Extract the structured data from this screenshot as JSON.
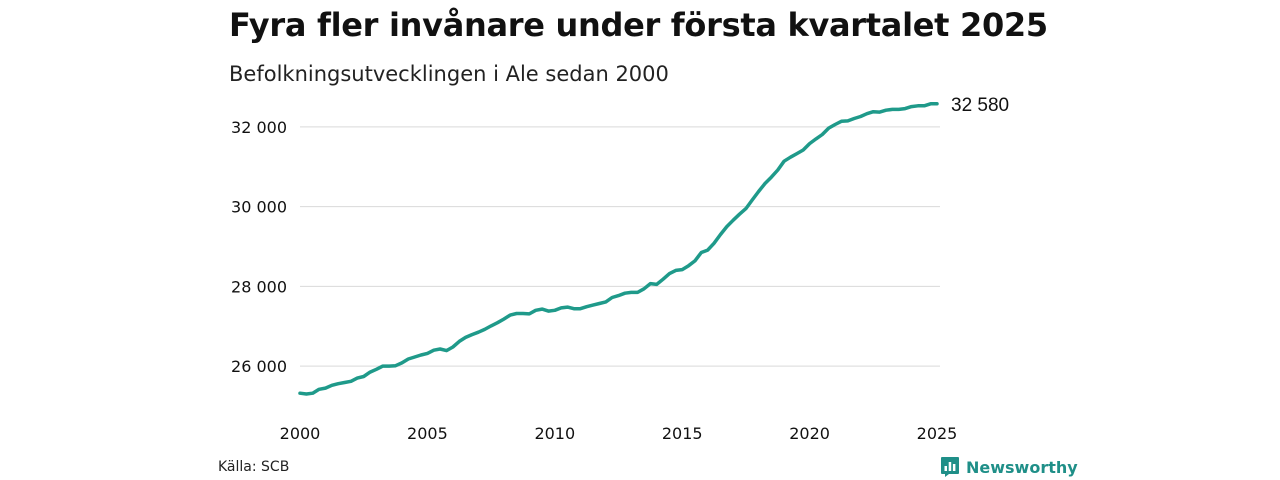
{
  "title": "Fyra fler invånare under första kvartalet 2025",
  "subtitle": "Befolkningsutvecklingen i Ale sedan 2000",
  "source": "Källa: SCB",
  "brand": {
    "name": "Newsworthy",
    "icon": "bar-chart-logo-icon",
    "color": "#1f8f88"
  },
  "colors": {
    "line": "#1f9a8a",
    "grid": "#d9d9d9",
    "text": "#111111"
  },
  "chart_data": {
    "type": "line",
    "title": "Fyra fler invånare under första kvartalet 2025",
    "subtitle": "Befolkningsutvecklingen i Ale sedan 2000",
    "xlabel": "",
    "ylabel": "",
    "xlim": [
      2000,
      2025
    ],
    "ylim": [
      25000,
      32800
    ],
    "x_ticks": [
      2000,
      2005,
      2010,
      2015,
      2020,
      2025
    ],
    "x_tick_labels": [
      "2000",
      "2005",
      "2010",
      "2015",
      "2020",
      "2025"
    ],
    "y_ticks": [
      26000,
      28000,
      30000,
      32000
    ],
    "y_tick_labels": [
      "26 000",
      "28 000",
      "30 000",
      "32 000"
    ],
    "grid": "horizontal",
    "end_label": "32 580",
    "series": [
      {
        "x": [
          2000.0,
          2000.25,
          2000.5,
          2000.75,
          2001.0,
          2001.25,
          2001.5,
          2001.75,
          2002.0,
          2002.25,
          2002.5,
          2002.75,
          2003.0,
          2003.25,
          2003.5,
          2003.75,
          2004.0,
          2004.25,
          2004.5,
          2004.75,
          2005.0,
          2005.25,
          2005.5,
          2005.75,
          2006.0,
          2006.25,
          2006.5,
          2006.75,
          2007.0,
          2007.25,
          2007.5,
          2007.75,
          2008.0,
          2008.25,
          2008.5,
          2008.75,
          2009.0,
          2009.25,
          2009.5,
          2009.75,
          2010.0,
          2010.25,
          2010.5,
          2010.75,
          2011.0,
          2011.25,
          2011.5,
          2011.75,
          2012.0,
          2012.25,
          2012.5,
          2012.75,
          2013.0,
          2013.25,
          2013.5,
          2013.75,
          2014.0,
          2014.25,
          2014.5,
          2014.75,
          2015.0,
          2015.25,
          2015.5,
          2015.75,
          2016.0,
          2016.25,
          2016.5,
          2016.75,
          2017.0,
          2017.25,
          2017.5,
          2017.75,
          2018.0,
          2018.25,
          2018.5,
          2018.75,
          2019.0,
          2019.25,
          2019.5,
          2019.75,
          2020.0,
          2020.25,
          2020.5,
          2020.75,
          2021.0,
          2021.25,
          2021.5,
          2021.75,
          2022.0,
          2022.25,
          2022.5,
          2022.75,
          2023.0,
          2023.25,
          2023.5,
          2023.75,
          2024.0,
          2024.25,
          2024.5,
          2024.75,
          2025.0
        ],
        "y": [
          25320,
          25300,
          25320,
          25420,
          25450,
          25520,
          25560,
          25590,
          25620,
          25700,
          25740,
          25850,
          25920,
          26000,
          26000,
          26010,
          26080,
          26180,
          26230,
          26280,
          26320,
          26400,
          26430,
          26390,
          26480,
          26620,
          26720,
          26790,
          26850,
          26920,
          27010,
          27090,
          27180,
          27280,
          27320,
          27320,
          27310,
          27400,
          27430,
          27380,
          27400,
          27460,
          27480,
          27440,
          27440,
          27490,
          27530,
          27570,
          27610,
          27720,
          27770,
          27830,
          27850,
          27850,
          27940,
          28070,
          28050,
          28180,
          28320,
          28400,
          28420,
          28520,
          28640,
          28850,
          28910,
          29080,
          29300,
          29500,
          29660,
          29810,
          29950,
          30170,
          30380,
          30580,
          30740,
          30920,
          31140,
          31240,
          31330,
          31420,
          31580,
          31700,
          31810,
          31970,
          32060,
          32140,
          32150,
          32210,
          32260,
          32330,
          32380,
          32370,
          32420,
          32440,
          32440,
          32460,
          32510,
          32530,
          32530,
          32580,
          32580
        ]
      }
    ]
  }
}
